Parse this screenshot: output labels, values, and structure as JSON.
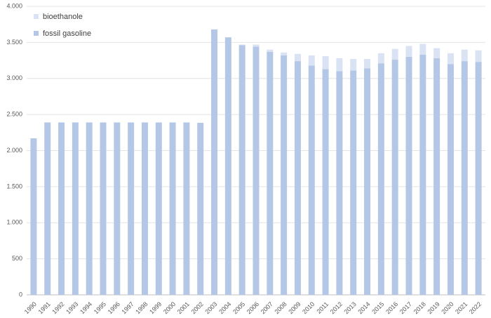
{
  "chart_data": {
    "type": "stacked_bar",
    "categories": [
      "1990",
      "1991",
      "1992",
      "1993",
      "1994",
      "1995",
      "1996",
      "1997",
      "1998",
      "1999",
      "2000",
      "2001",
      "2002",
      "2003",
      "2004",
      "2005",
      "2006",
      "2007",
      "2008",
      "2009",
      "2010",
      "2011",
      "2012",
      "2013",
      "2014",
      "2015",
      "2016",
      "2017",
      "2018",
      "2019",
      "2020",
      "2021",
      "2022"
    ],
    "series": [
      {
        "name": "fossil gasoline",
        "color": "#b4c7e7",
        "values": [
          2170,
          2390,
          2390,
          2390,
          2390,
          2390,
          2390,
          2390,
          2390,
          2390,
          2390,
          2390,
          2385,
          3680,
          3570,
          3460,
          3440,
          3370,
          3320,
          3240,
          3180,
          3130,
          3100,
          3110,
          3140,
          3210,
          3260,
          3300,
          3330,
          3280,
          3200,
          3240,
          3230
        ]
      },
      {
        "name": "bioethanole",
        "color": "#dae3f3",
        "values": [
          0,
          0,
          0,
          0,
          0,
          0,
          0,
          0,
          0,
          0,
          0,
          0,
          0,
          0,
          0,
          10,
          30,
          30,
          40,
          100,
          140,
          180,
          180,
          160,
          130,
          140,
          150,
          150,
          150,
          140,
          150,
          160,
          160
        ]
      }
    ],
    "ylim": [
      0,
      4000
    ],
    "yticks": [
      0,
      500,
      {
        "value": 1000,
        "label": "1.000"
      },
      {
        "value": 1500,
        "label": "1.500"
      },
      {
        "value": 2000,
        "label": "2.000"
      },
      {
        "value": 2500,
        "label": "2.500"
      },
      {
        "value": 3000,
        "label": "3.000"
      },
      {
        "value": 3500,
        "label": "3.500"
      },
      {
        "value": 4000,
        "label": "4.000"
      }
    ],
    "grid": true,
    "legend": "top-left"
  }
}
